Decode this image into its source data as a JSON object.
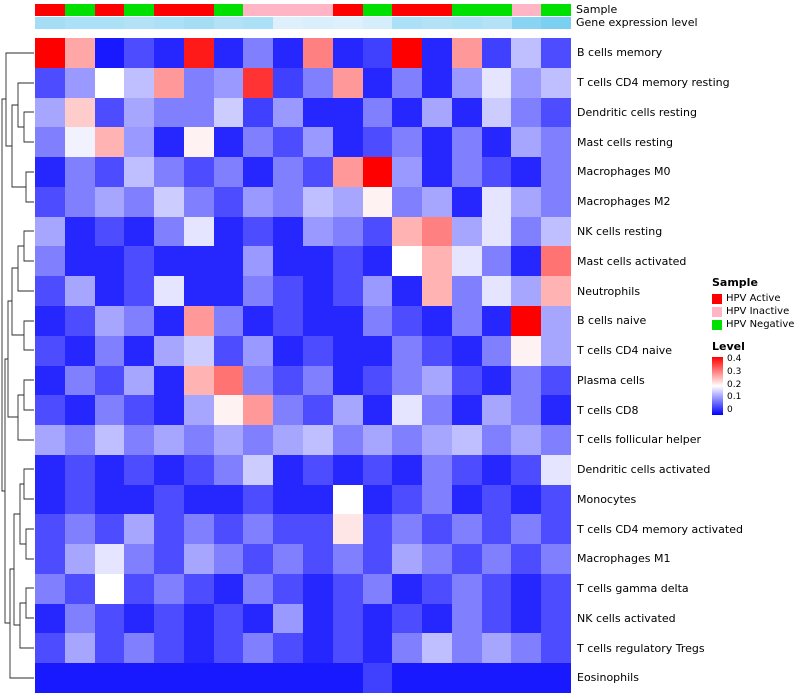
{
  "chart_data": {
    "type": "heatmap",
    "title": "",
    "row_labels": [
      "B cells memory",
      "T cells CD4 memory resting",
      "Dendritic cells resting",
      "Mast cells resting",
      "Macrophages M0",
      "Macrophages M2",
      "NK cells resting",
      "Mast cells activated",
      "Neutrophils",
      "B cells naive",
      "T cells CD4 naive",
      "Plasma cells",
      "T cells CD8",
      "T cells follicular helper",
      "Dendritic cells activated",
      "Monocytes",
      "T cells CD4 memory activated",
      "Macrophages M1",
      "T cells gamma delta",
      "NK cells activated",
      "T cells regulatory Tregs",
      "Eosinophils"
    ],
    "n_columns": 18,
    "value_range": [
      0,
      0.4
    ],
    "color_scale": {
      "low": "#0000FF",
      "mid": "#FFFFFF",
      "high": "#FF0000",
      "midpoint": 0.2
    },
    "values": [
      [
        0.4,
        0.27,
        0.02,
        0.06,
        0.03,
        0.38,
        0.03,
        0.1,
        0.03,
        0.3,
        0.03,
        0.05,
        0.4,
        0.03,
        0.28,
        0.05,
        0.15,
        0.06
      ],
      [
        0.06,
        0.12,
        0.2,
        0.15,
        0.28,
        0.1,
        0.12,
        0.36,
        0.05,
        0.1,
        0.28,
        0.03,
        0.1,
        0.03,
        0.12,
        0.18,
        0.12,
        0.15
      ],
      [
        0.13,
        0.24,
        0.06,
        0.13,
        0.1,
        0.1,
        0.16,
        0.05,
        0.12,
        0.03,
        0.03,
        0.1,
        0.03,
        0.13,
        0.03,
        0.16,
        0.1,
        0.06
      ],
      [
        0.1,
        0.19,
        0.26,
        0.12,
        0.03,
        0.21,
        0.03,
        0.1,
        0.06,
        0.12,
        0.03,
        0.06,
        0.1,
        0.03,
        0.1,
        0.03,
        0.13,
        0.1
      ],
      [
        0.03,
        0.1,
        0.06,
        0.15,
        0.1,
        0.06,
        0.1,
        0.03,
        0.1,
        0.06,
        0.28,
        0.4,
        0.12,
        0.03,
        0.1,
        0.06,
        0.03,
        0.1
      ],
      [
        0.06,
        0.1,
        0.13,
        0.1,
        0.16,
        0.1,
        0.06,
        0.12,
        0.1,
        0.15,
        0.13,
        0.21,
        0.1,
        0.13,
        0.03,
        0.18,
        0.13,
        0.1
      ],
      [
        0.13,
        0.03,
        0.06,
        0.03,
        0.1,
        0.18,
        0.03,
        0.06,
        0.03,
        0.12,
        0.1,
        0.06,
        0.26,
        0.3,
        0.13,
        0.18,
        0.1,
        0.15
      ],
      [
        0.1,
        0.03,
        0.03,
        0.06,
        0.03,
        0.03,
        0.03,
        0.12,
        0.03,
        0.03,
        0.06,
        0.03,
        0.2,
        0.26,
        0.18,
        0.1,
        0.03,
        0.31
      ],
      [
        0.06,
        0.13,
        0.03,
        0.06,
        0.18,
        0.03,
        0.03,
        0.1,
        0.06,
        0.03,
        0.06,
        0.12,
        0.03,
        0.26,
        0.1,
        0.18,
        0.13,
        0.26
      ],
      [
        0.03,
        0.06,
        0.13,
        0.1,
        0.03,
        0.28,
        0.1,
        0.03,
        0.06,
        0.03,
        0.03,
        0.1,
        0.06,
        0.03,
        0.1,
        0.03,
        0.4,
        0.13
      ],
      [
        0.06,
        0.03,
        0.1,
        0.03,
        0.13,
        0.16,
        0.06,
        0.12,
        0.03,
        0.06,
        0.03,
        0.03,
        0.1,
        0.06,
        0.03,
        0.1,
        0.21,
        0.13
      ],
      [
        0.03,
        0.1,
        0.06,
        0.13,
        0.03,
        0.26,
        0.31,
        0.1,
        0.06,
        0.1,
        0.03,
        0.06,
        0.1,
        0.13,
        0.06,
        0.03,
        0.1,
        0.06
      ],
      [
        0.06,
        0.03,
        0.1,
        0.06,
        0.03,
        0.13,
        0.21,
        0.28,
        0.1,
        0.06,
        0.13,
        0.03,
        0.18,
        0.1,
        0.03,
        0.13,
        0.1,
        0.03
      ],
      [
        0.13,
        0.1,
        0.15,
        0.1,
        0.13,
        0.1,
        0.13,
        0.1,
        0.13,
        0.15,
        0.1,
        0.13,
        0.1,
        0.13,
        0.15,
        0.1,
        0.13,
        0.1
      ],
      [
        0.03,
        0.06,
        0.03,
        0.06,
        0.03,
        0.06,
        0.1,
        0.16,
        0.03,
        0.06,
        0.03,
        0.06,
        0.03,
        0.1,
        0.06,
        0.03,
        0.06,
        0.18
      ],
      [
        0.03,
        0.06,
        0.03,
        0.03,
        0.06,
        0.03,
        0.03,
        0.06,
        0.03,
        0.03,
        0.2,
        0.03,
        0.06,
        0.1,
        0.03,
        0.06,
        0.03,
        0.06
      ],
      [
        0.06,
        0.1,
        0.06,
        0.13,
        0.06,
        0.1,
        0.06,
        0.1,
        0.06,
        0.06,
        0.22,
        0.06,
        0.1,
        0.06,
        0.1,
        0.06,
        0.1,
        0.06
      ],
      [
        0.06,
        0.13,
        0.18,
        0.1,
        0.06,
        0.13,
        0.1,
        0.06,
        0.1,
        0.06,
        0.1,
        0.06,
        0.13,
        0.1,
        0.06,
        0.1,
        0.06,
        0.1
      ],
      [
        0.1,
        0.06,
        0.2,
        0.06,
        0.1,
        0.06,
        0.03,
        0.1,
        0.06,
        0.03,
        0.06,
        0.1,
        0.03,
        0.06,
        0.1,
        0.06,
        0.03,
        0.06
      ],
      [
        0.03,
        0.1,
        0.06,
        0.03,
        0.06,
        0.03,
        0.06,
        0.03,
        0.12,
        0.03,
        0.06,
        0.03,
        0.06,
        0.03,
        0.1,
        0.06,
        0.03,
        0.06
      ],
      [
        0.06,
        0.13,
        0.06,
        0.1,
        0.06,
        0.03,
        0.06,
        0.1,
        0.06,
        0.03,
        0.06,
        0.03,
        0.1,
        0.15,
        0.1,
        0.13,
        0.1,
        0.06
      ],
      [
        0.02,
        0.02,
        0.02,
        0.02,
        0.02,
        0.02,
        0.02,
        0.02,
        0.02,
        0.02,
        0.02,
        0.05,
        0.02,
        0.02,
        0.02,
        0.02,
        0.02,
        0.02
      ]
    ],
    "annotations": {
      "sample": {
        "label": "Sample",
        "values": [
          "HPV Active",
          "HPV Negative",
          "HPV Active",
          "HPV Negative",
          "HPV Active",
          "HPV Active",
          "HPV Negative",
          "HPV Inactive",
          "HPV Inactive",
          "HPV Inactive",
          "HPV Active",
          "HPV Negative",
          "HPV Active",
          "HPV Active",
          "HPV Negative",
          "HPV Negative",
          "HPV Inactive",
          "HPV Negative"
        ],
        "colors": {
          "HPV Active": "#FF0000",
          "HPV Inactive": "#FFB5C5",
          "HPV Negative": "#00E000"
        }
      },
      "gene_expression": {
        "label": "Gene expression level",
        "values": [
          0.55,
          0.5,
          0.5,
          0.45,
          0.5,
          0.55,
          0.45,
          0.5,
          0.15,
          0.18,
          0.15,
          0.2,
          0.5,
          0.45,
          0.5,
          0.45,
          0.75,
          0.85
        ],
        "low_color": "#F2F7FE",
        "high_color": "#66C8EE"
      }
    },
    "legend": {
      "sample_title": "Sample",
      "sample_entries": [
        "HPV Active",
        "HPV Inactive",
        "HPV Negative"
      ],
      "level_title": "Level",
      "level_ticks": [
        "0.4",
        "0.3",
        "0.2",
        "0.1",
        "0"
      ]
    }
  }
}
